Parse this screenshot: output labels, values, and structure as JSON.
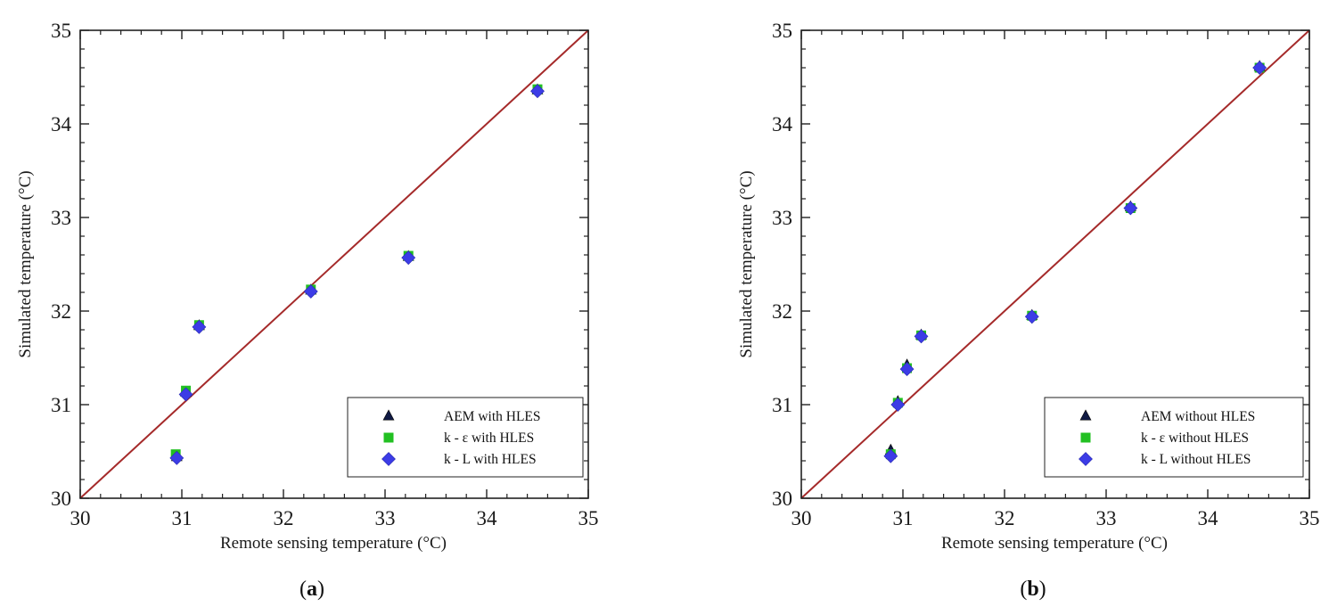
{
  "chart_data": [
    {
      "type": "scatter",
      "caption_open": "(",
      "caption_letter": "a",
      "caption_close": ")",
      "xlabel": "Remote sensing temperature (°C)",
      "ylabel": "Simulated temperature (°C)",
      "xlim": [
        30,
        35
      ],
      "ylim": [
        30,
        35
      ],
      "xticks": [
        "30",
        "31",
        "32",
        "33",
        "34",
        "35"
      ],
      "yticks": [
        "30",
        "31",
        "32",
        "33",
        "34",
        "35"
      ],
      "legend_position": "bottom-right",
      "reference_line": {
        "x": [
          30,
          35
        ],
        "y": [
          30,
          35
        ],
        "color": "#a52a2a"
      },
      "series": [
        {
          "name": "AEM with HLES",
          "marker": "triangle",
          "color": "#101a44",
          "x": [
            30.95,
            31.04,
            31.17,
            32.27,
            33.23,
            34.5
          ],
          "y": [
            30.44,
            31.13,
            31.84,
            32.22,
            32.58,
            34.36
          ]
        },
        {
          "name": "k - ε with HLES",
          "marker": "square",
          "color": "#22c022",
          "x": [
            30.94,
            31.04,
            31.17,
            32.27,
            33.23,
            34.5
          ],
          "y": [
            30.47,
            31.15,
            31.85,
            32.23,
            32.59,
            34.37
          ]
        },
        {
          "name": "k - L with HLES",
          "marker": "diamond",
          "color": "#3c3ce6",
          "x": [
            30.95,
            31.04,
            31.17,
            32.27,
            33.23,
            34.5
          ],
          "y": [
            30.43,
            31.11,
            31.83,
            32.21,
            32.57,
            34.35
          ]
        }
      ]
    },
    {
      "type": "scatter",
      "caption_open": "(",
      "caption_letter": "b",
      "caption_close": ")",
      "xlabel": "Remote sensing temperature (°C)",
      "ylabel": "Simulated temperature (°C)",
      "xlim": [
        30,
        35
      ],
      "ylim": [
        30,
        35
      ],
      "xticks": [
        "30",
        "31",
        "32",
        "33",
        "34",
        "35"
      ],
      "yticks": [
        "30",
        "31",
        "32",
        "33",
        "34",
        "35"
      ],
      "legend_position": "bottom-right",
      "reference_line": {
        "x": [
          30,
          35
        ],
        "y": [
          30,
          35
        ],
        "color": "#a52a2a"
      },
      "series": [
        {
          "name": "AEM without HLES",
          "marker": "triangle",
          "color": "#101a44",
          "x": [
            30.88,
            30.95,
            31.04,
            31.18,
            32.27,
            33.24,
            34.51
          ],
          "y": [
            30.51,
            31.03,
            31.42,
            31.74,
            31.95,
            33.11,
            34.61
          ]
        },
        {
          "name": "k - ε without HLES",
          "marker": "square",
          "color": "#22c022",
          "x": [
            30.88,
            30.95,
            31.04,
            31.18,
            32.27,
            33.24,
            34.51
          ],
          "y": [
            30.47,
            31.02,
            31.39,
            31.74,
            31.95,
            33.1,
            34.6
          ]
        },
        {
          "name": "k - L without HLES",
          "marker": "diamond",
          "color": "#3c3ce6",
          "x": [
            30.88,
            30.95,
            31.04,
            31.18,
            32.27,
            33.24,
            34.51
          ],
          "y": [
            30.45,
            31.0,
            31.38,
            31.73,
            31.94,
            33.1,
            34.6
          ]
        }
      ]
    }
  ]
}
